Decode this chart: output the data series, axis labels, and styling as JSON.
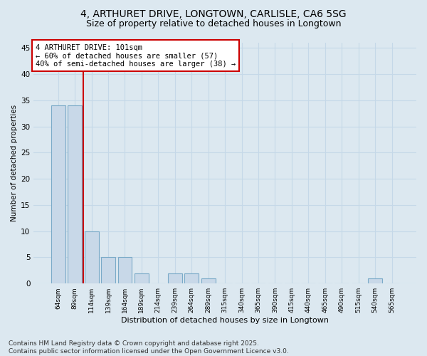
{
  "title1": "4, ARTHURET DRIVE, LONGTOWN, CARLISLE, CA6 5SG",
  "title2": "Size of property relative to detached houses in Longtown",
  "xlabel": "Distribution of detached houses by size in Longtown",
  "ylabel": "Number of detached properties",
  "bins": [
    "64sqm",
    "89sqm",
    "114sqm",
    "139sqm",
    "164sqm",
    "189sqm",
    "214sqm",
    "239sqm",
    "264sqm",
    "289sqm",
    "315sqm",
    "340sqm",
    "365sqm",
    "390sqm",
    "415sqm",
    "440sqm",
    "465sqm",
    "490sqm",
    "515sqm",
    "540sqm",
    "565sqm"
  ],
  "values": [
    34,
    34,
    10,
    5,
    5,
    2,
    0,
    2,
    2,
    1,
    0,
    0,
    0,
    0,
    0,
    0,
    0,
    0,
    0,
    1,
    0
  ],
  "bar_color": "#c8d8e8",
  "bar_edge_color": "#7aaac8",
  "grid_color": "#c5d8e8",
  "bg_color": "#dce8f0",
  "vline_x": 1.5,
  "vline_color": "#cc0000",
  "annotation_text": "4 ARTHURET DRIVE: 101sqm\n← 60% of detached houses are smaller (57)\n40% of semi-detached houses are larger (38) →",
  "annotation_box_color": "#ffffff",
  "annotation_box_edge": "#cc0000",
  "ylim": [
    0,
    46
  ],
  "yticks": [
    0,
    5,
    10,
    15,
    20,
    25,
    30,
    35,
    40,
    45
  ],
  "footnote": "Contains HM Land Registry data © Crown copyright and database right 2025.\nContains public sector information licensed under the Open Government Licence v3.0.",
  "title_fontsize": 10,
  "subtitle_fontsize": 9,
  "annotation_fontsize": 7.5,
  "footnote_fontsize": 6.5
}
